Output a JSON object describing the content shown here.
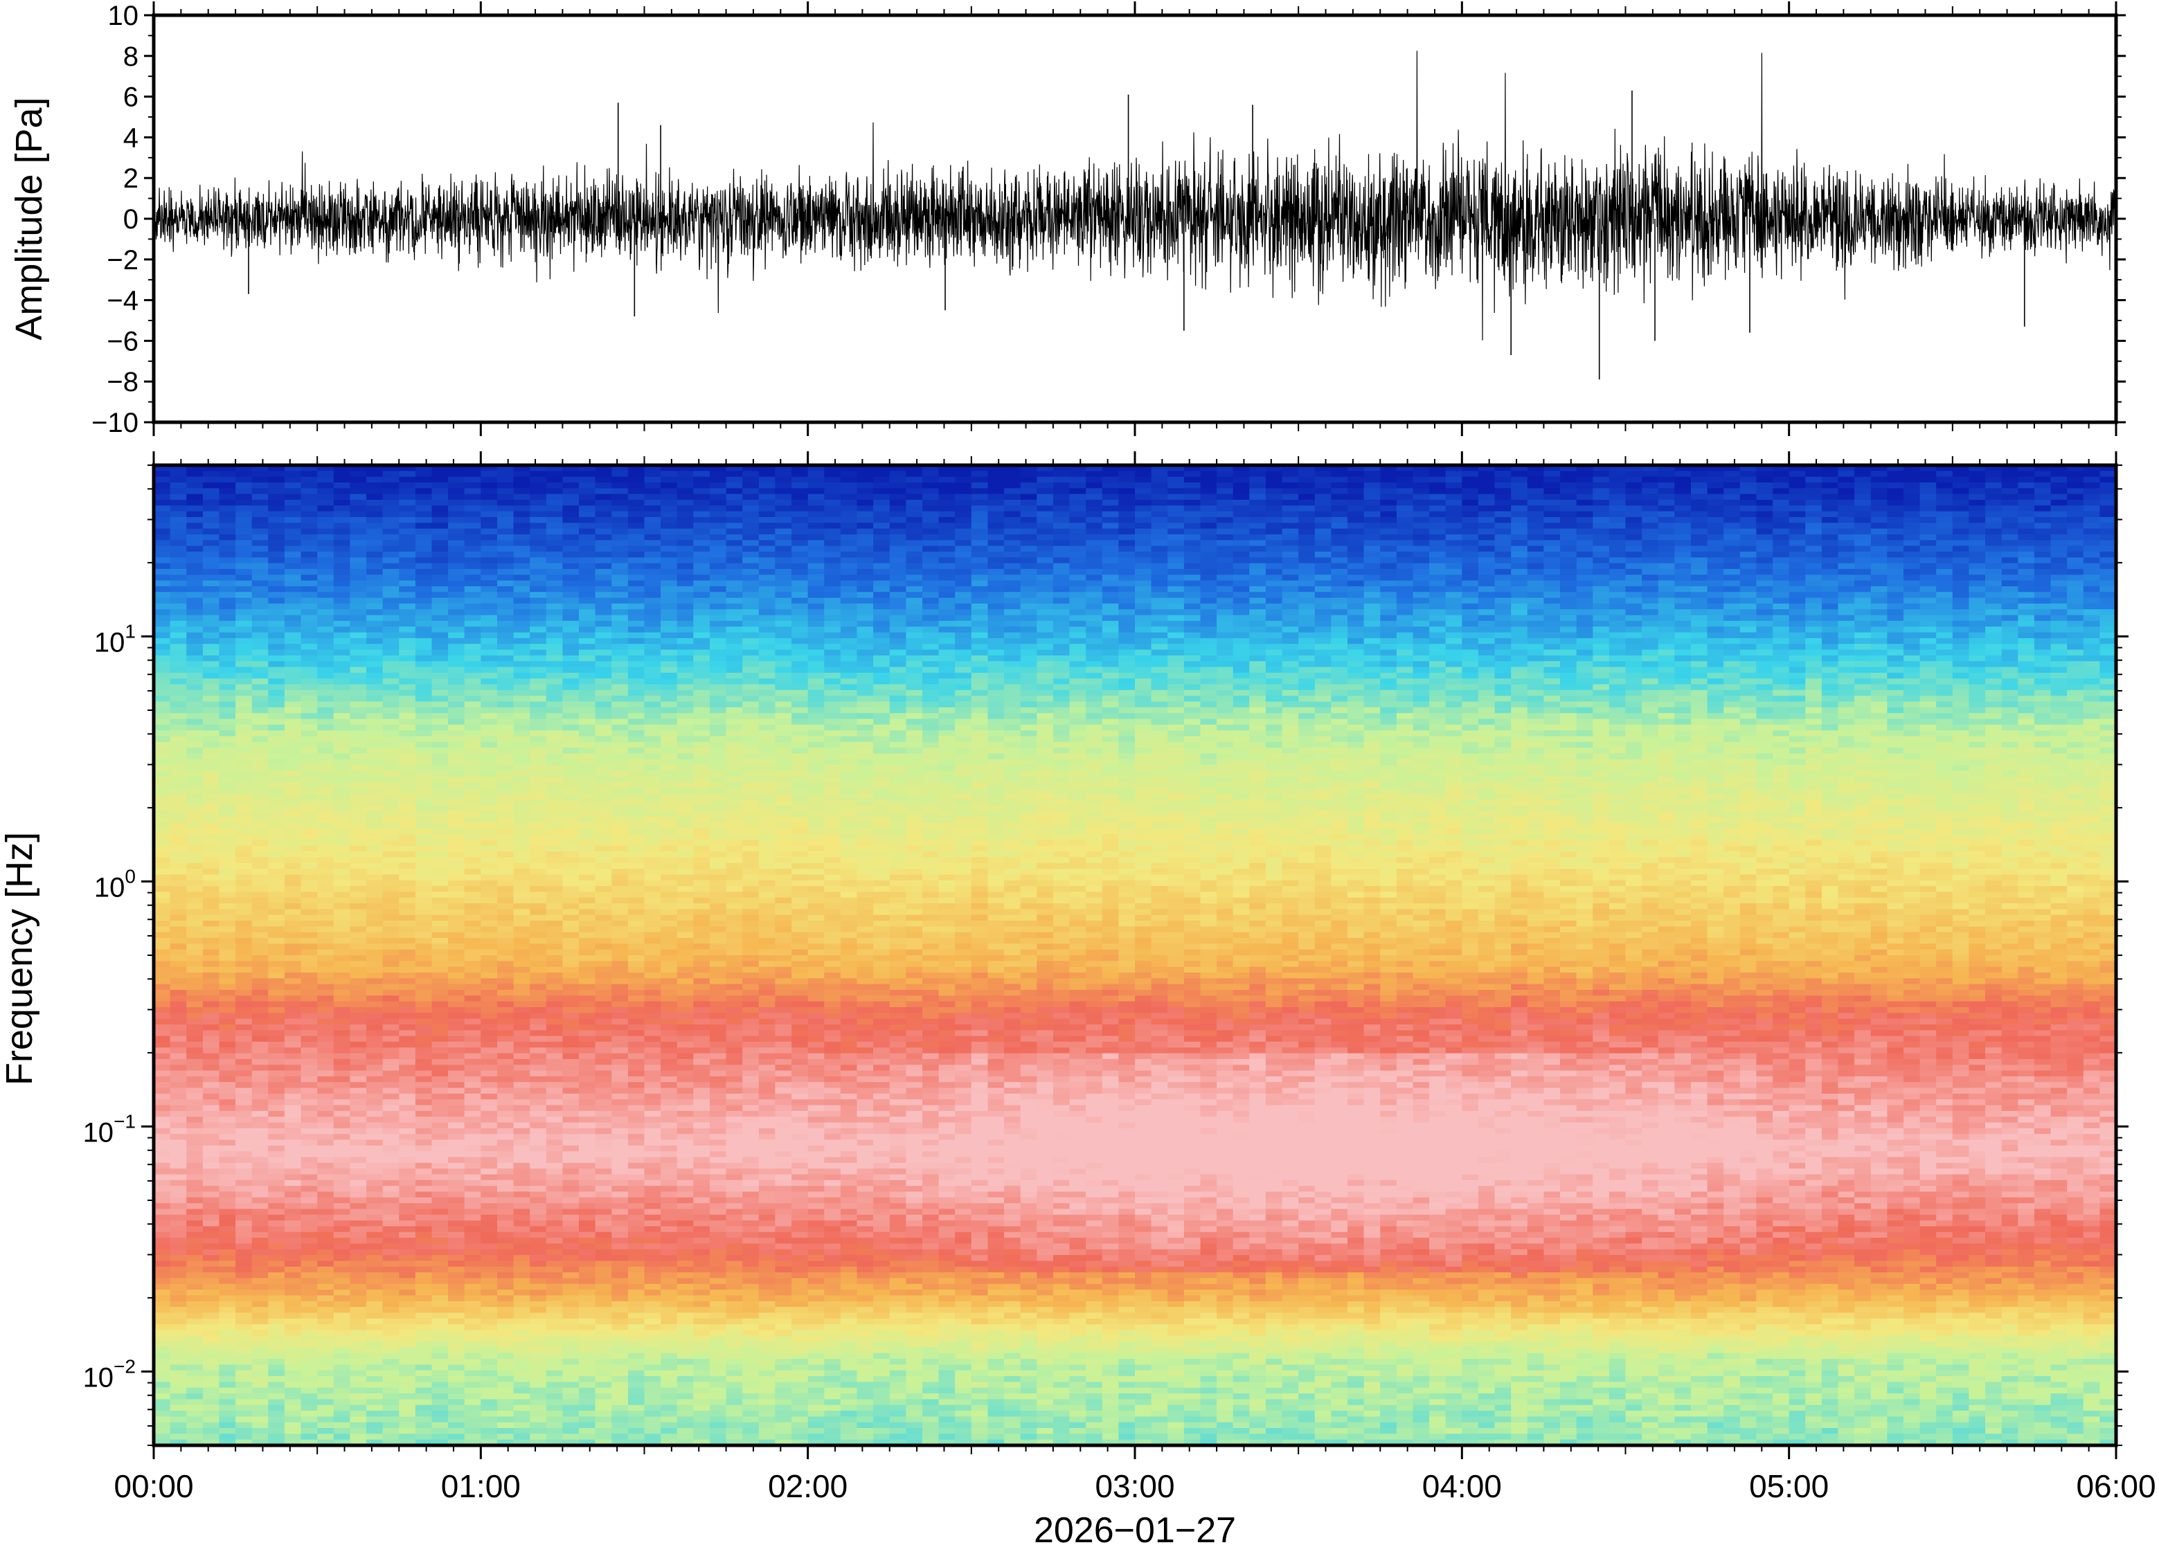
{
  "chart_data": [
    {
      "type": "line",
      "panel": "waveform",
      "ylabel": "Amplitude [Pa]",
      "ylim": [
        -10,
        10
      ],
      "yticks": [
        10,
        8,
        6,
        4,
        2,
        0,
        -2,
        -4,
        -6,
        -8,
        -10
      ],
      "ytick_labels": [
        "10",
        "8",
        "6",
        "4",
        "2",
        "0",
        "−2",
        "−4",
        "−6",
        "−8",
        "−10"
      ],
      "xlim_hours": [
        0,
        6
      ],
      "series": [
        {
          "color": "#000000",
          "envelope_hours": [
            0,
            0.5,
            1,
            1.5,
            2,
            2.5,
            3,
            3.5,
            4,
            4.5,
            5,
            5.5,
            6
          ],
          "envelope_pa": [
            1.3,
            1.5,
            1.7,
            2.0,
            1.9,
            2.0,
            2.6,
            2.7,
            2.9,
            3.1,
            2.3,
            1.6,
            1.3
          ],
          "spikes": [
            {
              "t": 0.29,
              "v": -3.7
            },
            {
              "t": 1.42,
              "v": 5.7
            },
            {
              "t": 1.47,
              "v": -4.8
            },
            {
              "t": 1.55,
              "v": 4.6
            },
            {
              "t": 2.42,
              "v": -4.5
            },
            {
              "t": 2.98,
              "v": 6.1
            },
            {
              "t": 3.15,
              "v": -5.5
            },
            {
              "t": 3.36,
              "v": 5.6
            },
            {
              "t": 4.15,
              "v": -6.7
            },
            {
              "t": 4.42,
              "v": -7.9
            },
            {
              "t": 4.52,
              "v": 6.3
            },
            {
              "t": 4.59,
              "v": -6.0
            },
            {
              "t": 4.88,
              "v": -5.6
            },
            {
              "t": 5.72,
              "v": -5.3
            }
          ]
        }
      ]
    },
    {
      "type": "heatmap",
      "panel": "spectrogram",
      "ylabel": "Frequency [Hz]",
      "yscale": "log",
      "ylim_hz": [
        0.005,
        50
      ],
      "ytick_labels": [
        {
          "value": 10,
          "base": "10",
          "exp": "1"
        },
        {
          "value": 1,
          "base": "10",
          "exp": "0"
        },
        {
          "value": 0.1,
          "base": "10",
          "exp": "−1"
        },
        {
          "value": 0.01,
          "base": "10",
          "exp": "−2"
        }
      ],
      "colors": [
        "#0a1fb0",
        "#1f6fe0",
        "#3ad4ea",
        "#c8f29a",
        "#f3e87e",
        "#f6b652",
        "#f06a5a",
        "#f9bfc0"
      ],
      "colormap_stops": [
        {
          "log_f": 1.699,
          "c": 0
        },
        {
          "log_f": 1.25,
          "c": 1
        },
        {
          "log_f": 0.9,
          "c": 2
        },
        {
          "log_f": 0.6,
          "c": 3
        },
        {
          "log_f": 0.1,
          "c": 4
        },
        {
          "log_f": -0.35,
          "c": 5
        },
        {
          "log_f": -0.55,
          "c": 6
        },
        {
          "log_f": -1.1,
          "c": 7
        },
        {
          "log_f": -1.5,
          "c": 6
        },
        {
          "log_f": -1.7,
          "c": 5
        },
        {
          "log_f": -1.95,
          "c": 3
        },
        {
          "log_f": -2.3,
          "c": 2.6
        }
      ],
      "xlim_hours": [
        0,
        6
      ]
    }
  ],
  "xaxis": {
    "tick_labels": [
      "00:00",
      "01:00",
      "02:00",
      "03:00",
      "04:00",
      "05:00",
      "06:00"
    ],
    "date_label": "2026−01−27"
  }
}
